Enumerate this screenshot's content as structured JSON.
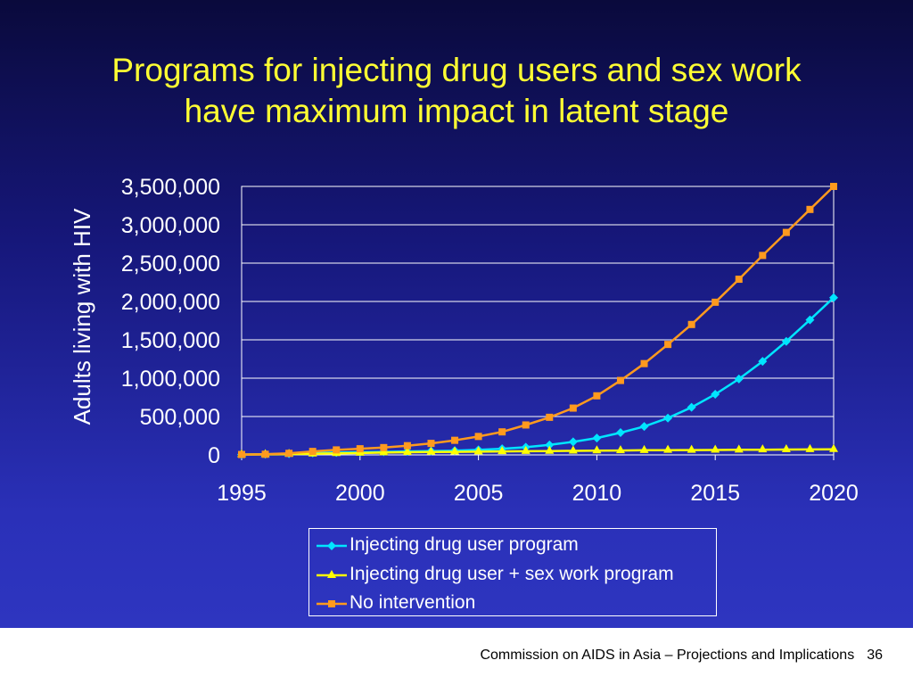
{
  "slide": {
    "title_line1": "Programs for injecting drug users and sex work",
    "title_line2": "have maximum impact in latent stage",
    "footer_text": "Commission on AIDS in Asia – Projections and Implications",
    "page_number": "36"
  },
  "colors": {
    "title": "#ffff33",
    "axis_text": "#ffffff",
    "series_idu": "#00e5ff",
    "series_idu_sw": "#ffff00",
    "series_none": "#ff9a1e"
  },
  "chart_data": {
    "type": "line",
    "title": "",
    "xlabel": "",
    "ylabel": "Adults living with HIV",
    "xlim": [
      1995,
      2020
    ],
    "ylim": [
      0,
      3500000
    ],
    "x_ticks": [
      "1995",
      "2000",
      "2005",
      "2010",
      "2015",
      "2020"
    ],
    "y_ticks": [
      "0",
      "500,000",
      "1,000,000",
      "1,500,000",
      "2,000,000",
      "2,500,000",
      "3,000,000",
      "3,500,000"
    ],
    "y_tick_values": [
      0,
      500000,
      1000000,
      1500000,
      2000000,
      2500000,
      3000000,
      3500000
    ],
    "grid": true,
    "legend_position": "bottom",
    "x": [
      1995,
      1996,
      1997,
      1998,
      1999,
      2000,
      2001,
      2002,
      2003,
      2004,
      2005,
      2006,
      2007,
      2008,
      2009,
      2010,
      2011,
      2012,
      2013,
      2014,
      2015,
      2016,
      2017,
      2018,
      2019,
      2020
    ],
    "series": [
      {
        "name": "Injecting drug user program",
        "marker": "diamond",
        "color": "#00e5ff",
        "values": [
          5000,
          8000,
          15000,
          25000,
          30000,
          35000,
          40000,
          45000,
          50000,
          55000,
          65000,
          80000,
          100000,
          130000,
          170000,
          220000,
          290000,
          370000,
          480000,
          620000,
          790000,
          990000,
          1220000,
          1480000,
          1760000,
          2050000
        ]
      },
      {
        "name": "Injecting drug user + sex work program",
        "marker": "triangle",
        "color": "#ffff00",
        "values": [
          5000,
          6000,
          10000,
          15000,
          20000,
          25000,
          30000,
          35000,
          38000,
          40000,
          42000,
          45000,
          48000,
          50000,
          52000,
          55000,
          57000,
          60000,
          62000,
          63000,
          64000,
          66000,
          68000,
          70000,
          71000,
          72000
        ]
      },
      {
        "name": "No intervention",
        "marker": "square",
        "color": "#ff9a1e",
        "values": [
          5000,
          8000,
          20000,
          45000,
          65000,
          80000,
          95000,
          120000,
          150000,
          190000,
          240000,
          300000,
          390000,
          490000,
          610000,
          770000,
          970000,
          1190000,
          1440000,
          1700000,
          1990000,
          2290000,
          2600000,
          2900000,
          3200000,
          3500000
        ]
      }
    ]
  }
}
